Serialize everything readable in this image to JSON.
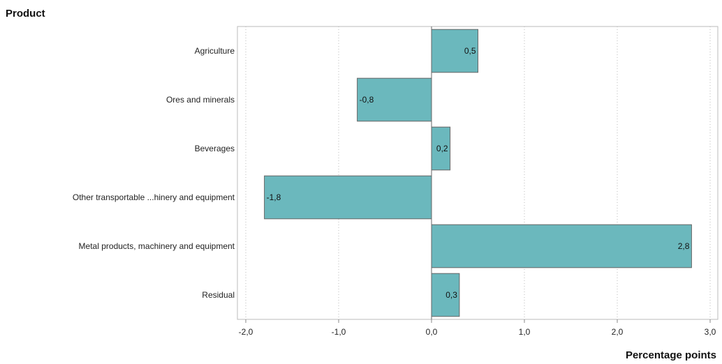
{
  "chart_data": {
    "type": "bar",
    "orientation": "horizontal",
    "category_axis_title": "Product",
    "xlabel": "Percentage points",
    "categories": [
      "Agriculture",
      "Ores and minerals",
      "Beverages",
      "Other transportable ...hinery and equipment",
      "Metal products, machinery and equipment",
      "Residual"
    ],
    "values": [
      0.5,
      -0.8,
      0.2,
      -1.8,
      2.8,
      0.3
    ],
    "value_labels": [
      "0,5",
      "-0,8",
      "0,2",
      "-1,8",
      "2,8",
      "0,3"
    ],
    "xlim": [
      -2.0,
      3.0
    ],
    "xticks": [
      -2.0,
      -1.0,
      0.0,
      1.0,
      2.0,
      3.0
    ],
    "xtick_labels": [
      "-2,0",
      "-1,0",
      "0,0",
      "1,0",
      "2,0",
      "3,0"
    ],
    "grid": "vertical dotted",
    "colors": {
      "bar_fill": "#6bb8bd",
      "bar_stroke": "#666666",
      "grid": "#bbbbbb",
      "frame": "#bbbbbb"
    }
  }
}
